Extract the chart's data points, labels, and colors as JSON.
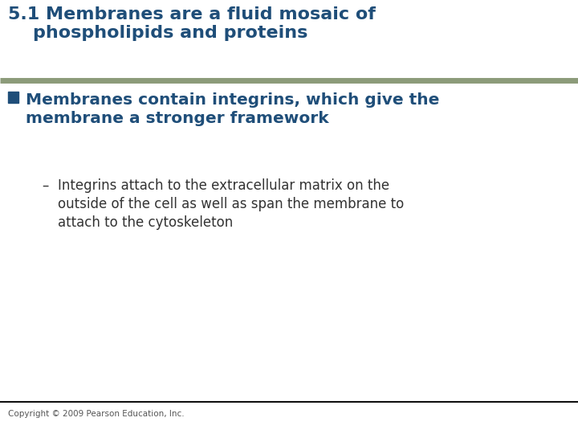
{
  "title_line1": "5.1 Membranes are a fluid mosaic of",
  "title_line2": "    phospholipids and proteins",
  "title_color": "#1F4E79",
  "bg_color": "#FFFFFF",
  "separator_color": "#8C9B7A",
  "bullet_text_line1": "Membranes contain integrins, which give the",
  "bullet_text_line2": "membrane a stronger framework",
  "bullet_color": "#1F4E79",
  "sub_bullet_dash": "–",
  "sub_bullet_line1": "Integrins attach to the extracellular matrix on the",
  "sub_bullet_line2": "outside of the cell as well as span the membrane to",
  "sub_bullet_line3": "attach to the cytoskeleton",
  "sub_text_color": "#333333",
  "footer_text": "Copyright © 2009 Pearson Education, Inc.",
  "footer_color": "#555555",
  "footer_line_color": "#111111",
  "title_fontsize": 16,
  "bullet_fontsize": 14.5,
  "sub_bullet_fontsize": 12,
  "footer_fontsize": 7.5
}
